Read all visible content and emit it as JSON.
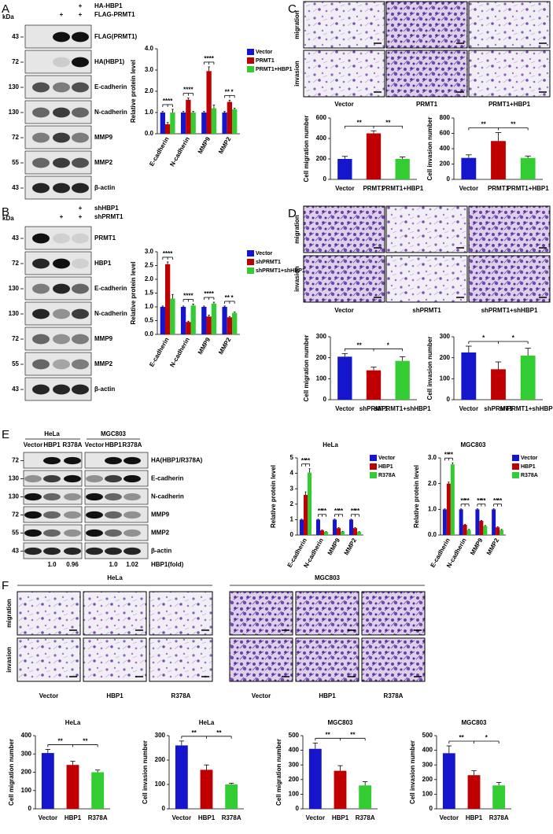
{
  "panel_labels": [
    "A",
    "B",
    "C",
    "D",
    "E",
    "F"
  ],
  "blots": {
    "A": {
      "kda": "kDa",
      "treatments": [
        {
          "label": "HA-HBP1",
          "signs": [
            null,
            null,
            "+"
          ]
        },
        {
          "label": "FLAG-PRMT1",
          "signs": [
            null,
            "+",
            "+"
          ]
        }
      ],
      "rows": [
        {
          "marker": 43,
          "name": "FLAG(PRMT1)"
        },
        {
          "marker": 72,
          "name": "HA(HBP1)"
        },
        {
          "marker": 130,
          "name": "E-cadherin"
        },
        {
          "marker": 130,
          "name": "N-cadherin"
        },
        {
          "marker": 72,
          "name": "MMP9"
        },
        {
          "marker": 55,
          "name": "MMP2"
        },
        {
          "marker": 43,
          "name": "β-actin"
        }
      ]
    },
    "B": {
      "kda": "kDa",
      "treatments": [
        {
          "label": "shHBP1",
          "signs": [
            null,
            null,
            "+"
          ]
        },
        {
          "label": "shPRMT1",
          "signs": [
            null,
            "+",
            "+"
          ]
        }
      ],
      "rows": [
        {
          "marker": 43,
          "name": "PRMT1"
        },
        {
          "marker": 72,
          "name": "HBP1"
        },
        {
          "marker": 130,
          "name": "E-cadherin"
        },
        {
          "marker": 130,
          "name": "N-cadherin"
        },
        {
          "marker": 72,
          "name": "MMP9"
        },
        {
          "marker": 55,
          "name": "MMP2"
        },
        {
          "marker": 43,
          "name": "β-actin"
        }
      ]
    },
    "E": {
      "groups": [
        {
          "name": "HeLa",
          "lanes": [
            "Vector",
            "HBP1",
            "R378A"
          ],
          "fold": [
            "1.0",
            "0.96"
          ]
        },
        {
          "name": "MGC803",
          "lanes": [
            "Vector",
            "HBP1",
            "R378A"
          ],
          "fold": [
            "1.0",
            "1.02"
          ]
        }
      ],
      "rows": [
        {
          "marker": 72,
          "name": "HA(HBP1/R378A)"
        },
        {
          "marker": 130,
          "name": "E-cadherin"
        },
        {
          "marker": 130,
          "name": "N-cadherin"
        },
        {
          "marker": 72,
          "name": "MMP9"
        },
        {
          "marker": 55,
          "name": "MMP2"
        },
        {
          "marker": 43,
          "name": "β-actin"
        }
      ],
      "fold_label": "HBP1(fold)"
    }
  },
  "images": {
    "C": {
      "rows": [
        "migration",
        "invasion"
      ],
      "columns": [
        "Vector",
        "PRMT1",
        "PRMT1+HBP1"
      ]
    },
    "D": {
      "rows": [
        "migration",
        "invasion"
      ],
      "columns": [
        "Vector",
        "shPRMT1",
        "shPRMT1+shHBP1"
      ]
    },
    "F": {
      "rows": [
        "migration",
        "invasion"
      ],
      "groups": [
        {
          "name": "HeLa",
          "columns": [
            "Vector",
            "HBP1",
            "R378A"
          ]
        },
        {
          "name": "MGC803",
          "columns": [
            "Vector",
            "HBP1",
            "R378A"
          ]
        }
      ]
    }
  },
  "chart_data": [
    {
      "type": "bar",
      "ylabel": "Relative protein level",
      "categories": [
        "E-cadherin",
        "N-cadherin",
        "MMP9",
        "MMP2"
      ],
      "series": [
        {
          "name": "Vector",
          "color": "#1515cc",
          "values": [
            1,
            1,
            1,
            1
          ],
          "errors": [
            0.05,
            0.05,
            0.05,
            0.05
          ]
        },
        {
          "name": "PRMT1",
          "color": "#c00000",
          "values": [
            0.45,
            1.6,
            2.95,
            1.5
          ],
          "errors": [
            0.08,
            0.08,
            0.2,
            0.08
          ]
        },
        {
          "name": "PRMT1+HBP1",
          "color": "#33cc33",
          "values": [
            1.0,
            1.0,
            1.2,
            1.15
          ],
          "errors": [
            0.15,
            0.05,
            0.15,
            0.05
          ]
        }
      ],
      "ylim": [
        0,
        4
      ],
      "yticks": [
        {
          "value": 0,
          "label": "0.0"
        },
        {
          "value": 1,
          "label": "1.0"
        },
        {
          "value": 2,
          "label": "2.0"
        },
        {
          "value": 3,
          "label": "3.0"
        },
        {
          "value": 4,
          "label": "4.0"
        }
      ],
      "significance": [
        [
          "**",
          "**"
        ],
        [
          "**",
          "**"
        ],
        [
          "**",
          "**"
        ],
        [
          "**",
          "*"
        ]
      ]
    },
    {
      "type": "bar",
      "ylabel": "Relative protein level",
      "categories": [
        "E-cadherin",
        "N-cadherin",
        "MMP9",
        "MMP2"
      ],
      "series": [
        {
          "name": "Vector",
          "color": "#1515cc",
          "values": [
            1,
            1,
            1,
            1
          ],
          "errors": [
            0.03,
            0.03,
            0.03,
            0.03
          ]
        },
        {
          "name": "shPRMT1",
          "color": "#c00000",
          "values": [
            2.55,
            0.45,
            0.65,
            0.62
          ],
          "errors": [
            0.08,
            0.03,
            0.05,
            0.03
          ]
        },
        {
          "name": "shPRMT1+shHBP1",
          "color": "#33cc33",
          "values": [
            1.3,
            1.05,
            1.12,
            0.78
          ],
          "errors": [
            0.15,
            0.05,
            0.05,
            0.03
          ]
        }
      ],
      "ylim": [
        0,
        3
      ],
      "yticks": [
        {
          "value": 0,
          "label": "0.0"
        },
        {
          "value": 0.5,
          "label": "0.5"
        },
        {
          "value": 1,
          "label": "1.0"
        },
        {
          "value": 1.5,
          "label": "1.5"
        },
        {
          "value": 2,
          "label": "2.0"
        },
        {
          "value": 2.5,
          "label": "2.5"
        },
        {
          "value": 3,
          "label": "3.0"
        }
      ],
      "significance": [
        [
          "**",
          "**"
        ],
        [
          "**",
          "**"
        ],
        [
          "**",
          "**"
        ],
        [
          "**",
          "*"
        ]
      ]
    },
    {
      "type": "bar",
      "ylabel": "Cell migration number",
      "categories": [
        "Vector",
        "PRMT1",
        "PRMT1+HBP1"
      ],
      "values": [
        200,
        450,
        200
      ],
      "errors": [
        25,
        25,
        20
      ],
      "colors": [
        "#1515cc",
        "#c00000",
        "#33cc33"
      ],
      "ylim": [
        0,
        600
      ],
      "yticks": [
        0,
        200,
        400,
        600
      ],
      "significance": [
        "**",
        "**"
      ]
    },
    {
      "type": "bar",
      "ylabel": "Cell invasion number",
      "categories": [
        "Vector",
        "PRMT1",
        "PRMT1+HBP1"
      ],
      "values": [
        280,
        500,
        280
      ],
      "errors": [
        40,
        110,
        25
      ],
      "colors": [
        "#1515cc",
        "#c00000",
        "#33cc33"
      ],
      "ylim": [
        0,
        800
      ],
      "yticks": [
        0,
        200,
        400,
        600,
        800
      ],
      "significance": [
        "**",
        "**"
      ]
    },
    {
      "type": "bar",
      "ylabel": "Cell migration number",
      "categories": [
        "Vector",
        "shPRMT1",
        "shPRMT1+shHBP1"
      ],
      "values": [
        205,
        140,
        185
      ],
      "errors": [
        15,
        15,
        20
      ],
      "colors": [
        "#1515cc",
        "#c00000",
        "#33cc33"
      ],
      "ylim": [
        0,
        300
      ],
      "yticks": [
        0,
        100,
        200,
        300
      ],
      "significance": [
        "**",
        "*"
      ]
    },
    {
      "type": "bar",
      "ylabel": "Cell invasion number",
      "categories": [
        "Vector",
        "shPRMT1",
        "shPRMT1+shHBP1"
      ],
      "values": [
        225,
        145,
        210
      ],
      "errors": [
        30,
        35,
        35
      ],
      "colors": [
        "#1515cc",
        "#c00000",
        "#33cc33"
      ],
      "ylim": [
        0,
        300
      ],
      "yticks": [
        0,
        100,
        200,
        300
      ],
      "significance": [
        "*",
        "*"
      ]
    },
    {
      "type": "bar",
      "title": "HeLa",
      "ylabel": "Relative protein level",
      "categories": [
        "E-cadherin",
        "N-cadherin",
        "MMP9",
        "MMP2"
      ],
      "series": [
        {
          "name": "Vector",
          "color": "#1515cc",
          "values": [
            1,
            1,
            1,
            1
          ],
          "errors": [
            0.03,
            0.03,
            0.03,
            0.03
          ]
        },
        {
          "name": "HBP1",
          "color": "#c00000",
          "values": [
            2.6,
            0.3,
            0.45,
            0.45
          ],
          "errors": [
            0.2,
            0.03,
            0.03,
            0.03
          ]
        },
        {
          "name": "R378A",
          "color": "#33cc33",
          "values": [
            4.05,
            0.2,
            0.22,
            0.2
          ],
          "errors": [
            0.25,
            0.02,
            0.02,
            0.02
          ]
        }
      ],
      "ylim": [
        0,
        5
      ],
      "yticks": [
        0,
        1,
        2,
        3,
        4,
        5
      ],
      "significance": [
        [
          "**",
          "**"
        ],
        [
          "**",
          "**"
        ],
        [
          "**",
          "**"
        ],
        [
          "**",
          "**"
        ]
      ]
    },
    {
      "type": "bar",
      "title": "MGC803",
      "ylabel": "Relative protein level",
      "categories": [
        "E-cadherin",
        "N-cadherin",
        "MMP9",
        "MMP2"
      ],
      "series": [
        {
          "name": "Vector",
          "color": "#1515cc",
          "values": [
            1,
            1,
            1,
            1
          ],
          "errors": [
            0.02,
            0.02,
            0.02,
            0.02
          ]
        },
        {
          "name": "HBP1",
          "color": "#c00000",
          "values": [
            2.0,
            0.4,
            0.55,
            0.3
          ],
          "errors": [
            0.06,
            0.02,
            0.02,
            0.02
          ]
        },
        {
          "name": "R378A",
          "color": "#33cc33",
          "values": [
            2.75,
            0.2,
            0.35,
            0.2
          ],
          "errors": [
            0.06,
            0.02,
            0.02,
            0.02
          ]
        }
      ],
      "ylim": [
        0,
        3
      ],
      "yticks": [
        {
          "value": 0,
          "label": "0.0"
        },
        {
          "value": 1,
          "label": "1.0"
        },
        {
          "value": 2,
          "label": "2.0"
        },
        {
          "value": 3,
          "label": "3.0"
        }
      ],
      "significance": [
        [
          "**",
          "**"
        ],
        [
          "**",
          "**"
        ],
        [
          "**",
          "**"
        ],
        [
          "**",
          "**"
        ]
      ]
    },
    {
      "type": "bar",
      "title": "HeLa",
      "ylabel": "Cell migration number",
      "categories": [
        "Vector",
        "HBP1",
        "R378A"
      ],
      "values": [
        305,
        240,
        200
      ],
      "errors": [
        20,
        20,
        12
      ],
      "colors": [
        "#1515cc",
        "#c00000",
        "#33cc33"
      ],
      "ylim": [
        0,
        400
      ],
      "yticks": [
        0,
        100,
        200,
        300,
        400
      ],
      "significance": [
        "**",
        "**"
      ]
    },
    {
      "type": "bar",
      "title": "HeLa",
      "ylabel": "Cell invasion number",
      "categories": [
        "Vector",
        "HBP1",
        "R378A"
      ],
      "values": [
        260,
        160,
        100
      ],
      "errors": [
        18,
        20,
        5
      ],
      "colors": [
        "#1515cc",
        "#c00000",
        "#33cc33"
      ],
      "ylim": [
        0,
        300
      ],
      "yticks": [
        0,
        100,
        200,
        300
      ],
      "significance": [
        "**",
        "**"
      ]
    },
    {
      "type": "bar",
      "title": "MGC803",
      "ylabel": "Cell migration number",
      "categories": [
        "Vector",
        "HBP1",
        "R378A"
      ],
      "values": [
        410,
        260,
        160
      ],
      "errors": [
        40,
        35,
        25
      ],
      "colors": [
        "#1515cc",
        "#c00000",
        "#33cc33"
      ],
      "ylim": [
        0,
        500
      ],
      "yticks": [
        0,
        100,
        200,
        300,
        400,
        500
      ],
      "significance": [
        "**",
        "**"
      ]
    },
    {
      "type": "bar",
      "title": "MGC803",
      "ylabel": "Cell invasion number",
      "categories": [
        "Vector",
        "HBP1",
        "R378A"
      ],
      "values": [
        380,
        230,
        160
      ],
      "errors": [
        50,
        30,
        20
      ],
      "colors": [
        "#1515cc",
        "#c00000",
        "#33cc33"
      ],
      "ylim": [
        0,
        500
      ],
      "yticks": [
        0,
        100,
        200,
        300,
        400,
        500
      ],
      "significance": [
        "**",
        "*"
      ]
    }
  ]
}
